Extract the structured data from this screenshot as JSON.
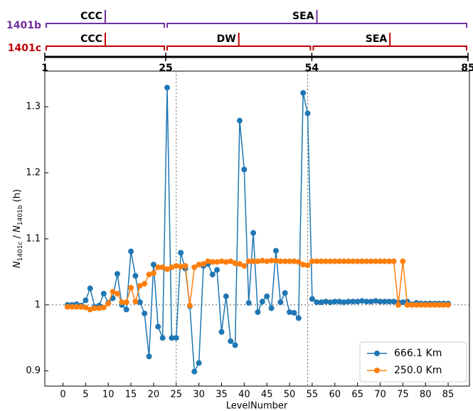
{
  "chart_data": {
    "type": "line",
    "xlabel": "LevelNumber",
    "ylabel": [
      "N",
      "1401c",
      " / ",
      "N",
      "1401b",
      " (h)"
    ],
    "x": [
      1,
      2,
      3,
      4,
      5,
      6,
      7,
      8,
      9,
      10,
      11,
      12,
      13,
      14,
      15,
      16,
      17,
      18,
      19,
      20,
      21,
      22,
      23,
      24,
      25,
      26,
      27,
      28,
      29,
      30,
      31,
      32,
      33,
      34,
      35,
      36,
      37,
      38,
      39,
      40,
      41,
      42,
      43,
      44,
      45,
      46,
      47,
      48,
      49,
      50,
      51,
      52,
      53,
      54,
      55,
      56,
      57,
      58,
      59,
      60,
      61,
      62,
      63,
      64,
      65,
      66,
      67,
      68,
      69,
      70,
      71,
      72,
      73,
      74,
      75,
      76,
      77,
      78,
      79,
      80,
      81,
      82,
      83,
      84,
      85
    ],
    "series": [
      {
        "name": "666.1 Km",
        "color": "#1f77b4",
        "values": [
          1.0,
          1.0,
          1.001,
          0.999,
          1.007,
          1.025,
          0.997,
          0.999,
          1.017,
          1.003,
          1.01,
          1.047,
          1.0,
          0.993,
          1.081,
          1.044,
          1.004,
          0.987,
          0.922,
          1.061,
          0.967,
          0.95,
          1.329,
          0.95,
          0.95,
          1.079,
          1.055,
          0.998,
          0.899,
          0.912,
          1.059,
          1.062,
          1.046,
          1.053,
          0.959,
          1.013,
          0.945,
          0.939,
          1.279,
          1.205,
          1.003,
          1.109,
          0.989,
          1.005,
          1.013,
          0.995,
          1.082,
          1.004,
          1.018,
          0.989,
          0.988,
          0.98,
          1.321,
          1.29,
          1.009,
          1.004,
          1.004,
          1.005,
          1.004,
          1.005,
          1.005,
          1.004,
          1.005,
          1.005,
          1.005,
          1.006,
          1.005,
          1.005,
          1.006,
          1.005,
          1.005,
          1.005,
          1.005,
          1.004,
          1.004,
          1.005,
          1.001,
          1.003,
          1.002,
          1.002,
          1.002,
          1.002,
          1.002,
          1.002,
          1.002
        ]
      },
      {
        "name": "250.0 Km",
        "color": "#ff7f0e",
        "values": [
          0.997,
          0.997,
          0.997,
          0.997,
          0.996,
          0.993,
          0.995,
          0.995,
          0.996,
          1.002,
          1.02,
          1.017,
          1.004,
          1.004,
          1.026,
          1.005,
          1.029,
          1.032,
          1.046,
          1.048,
          1.057,
          1.057,
          1.054,
          1.057,
          1.059,
          1.058,
          1.059,
          0.999,
          1.057,
          1.061,
          1.062,
          1.066,
          1.065,
          1.065,
          1.066,
          1.065,
          1.066,
          1.063,
          1.062,
          1.059,
          1.066,
          1.066,
          1.066,
          1.067,
          1.066,
          1.067,
          1.067,
          1.066,
          1.066,
          1.066,
          1.066,
          1.065,
          1.061,
          1.06,
          1.066,
          1.066,
          1.066,
          1.066,
          1.066,
          1.066,
          1.066,
          1.066,
          1.066,
          1.066,
          1.066,
          1.066,
          1.066,
          1.066,
          1.066,
          1.066,
          1.066,
          1.066,
          1.066,
          1.0,
          1.066,
          1.0,
          1.0,
          1.0,
          1.0,
          1.0,
          1.0,
          1.0,
          1.0,
          1.0,
          1.0
        ]
      }
    ],
    "xlim": [
      -4,
      89.7
    ],
    "ylim": [
      0.877,
      1.354
    ],
    "xticks": [
      0,
      5,
      10,
      15,
      20,
      25,
      30,
      35,
      40,
      45,
      50,
      55,
      60,
      65,
      70,
      75,
      80,
      85
    ],
    "yticks": [
      0.9,
      1.0,
      1.1,
      1.2,
      1.3
    ],
    "vlines": [
      25,
      54
    ],
    "hline": 1.0,
    "legend": "lower right",
    "top_lim": [
      1,
      85
    ],
    "top_ticks": [
      1,
      25,
      54,
      85
    ],
    "brackets": [
      {
        "label": "1401b",
        "color": "#7030a0",
        "regions": [
          {
            "name": "CCC",
            "from": 1,
            "to": 25
          },
          {
            "name": "SEA",
            "from": 25,
            "to": 85
          }
        ]
      },
      {
        "label": "1401c",
        "color": "#c00000",
        "regions": [
          {
            "name": "CCC",
            "from": 1,
            "to": 25
          },
          {
            "name": "DW",
            "from": 25,
            "to": 54
          },
          {
            "name": "SEA",
            "from": 54,
            "to": 85
          }
        ]
      }
    ]
  }
}
